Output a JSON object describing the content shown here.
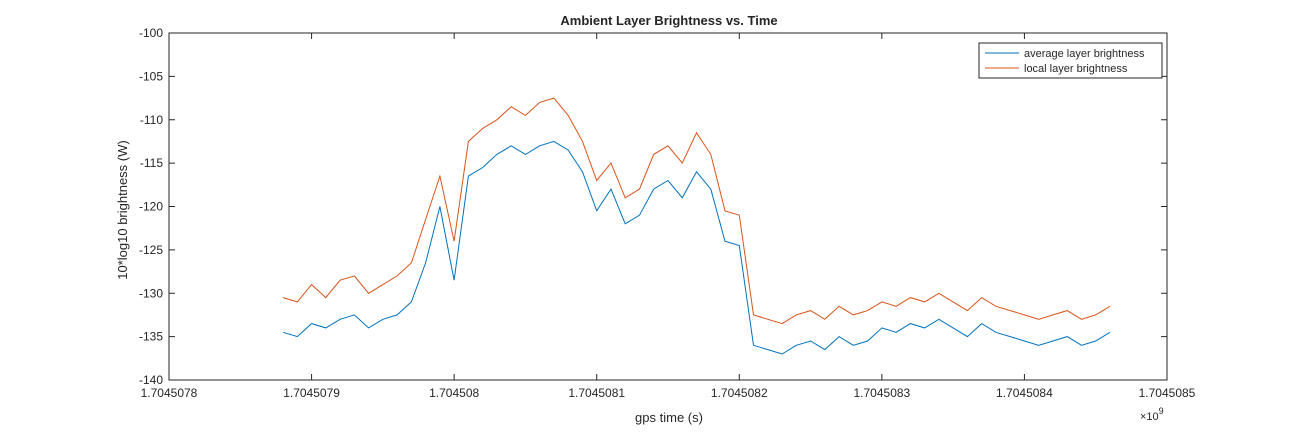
{
  "chart_data": {
    "type": "line",
    "title": "Ambient Layer Brightness vs. Time",
    "xlabel": "gps time (s)",
    "ylabel": "10*log10 brightness (W)",
    "x_exponent_label": "×10",
    "x_exponent_power": "9",
    "xlim": [
      1.7045078,
      1.7045085
    ],
    "ylim": [
      -140,
      -100
    ],
    "x_ticks": [
      1.7045078,
      1.7045079,
      1.704508,
      1.7045081,
      1.7045082,
      1.7045083,
      1.7045084,
      1.7045085
    ],
    "x_tick_labels": [
      "1.7045078",
      "1.7045079",
      "1.704508",
      "1.7045081",
      "1.7045082",
      "1.7045083",
      "1.7045084",
      "1.7045085"
    ],
    "y_ticks": [
      -140,
      -135,
      -130,
      -125,
      -120,
      -115,
      -110,
      -105,
      -100
    ],
    "y_tick_labels": [
      "-140",
      "-135",
      "-130",
      "-125",
      "-120",
      "-115",
      "-110",
      "-105",
      "-100"
    ],
    "grid": false,
    "legend_position": "top-right",
    "series": [
      {
        "name": "average layer brightness",
        "color": "#0072BD",
        "x": [
          1.70450788,
          1.70450789,
          1.7045079,
          1.70450791,
          1.70450792,
          1.70450793,
          1.70450794,
          1.70450795,
          1.70450796,
          1.70450797,
          1.70450798,
          1.70450799,
          1.704508,
          1.70450801,
          1.70450802,
          1.70450803,
          1.70450804,
          1.70450805,
          1.70450806,
          1.70450807,
          1.70450808,
          1.70450809,
          1.7045081,
          1.70450811,
          1.70450812,
          1.70450813,
          1.70450814,
          1.70450815,
          1.70450816,
          1.70450817,
          1.70450818,
          1.70450819,
          1.7045082,
          1.70450821,
          1.70450822,
          1.70450823,
          1.70450824,
          1.70450825,
          1.70450826,
          1.70450827,
          1.70450828,
          1.70450829,
          1.7045083,
          1.70450831,
          1.70450832,
          1.70450833,
          1.70450834,
          1.70450835,
          1.70450836,
          1.70450837,
          1.70450838,
          1.70450839,
          1.7045084,
          1.70450841,
          1.70450842,
          1.70450843,
          1.70450844,
          1.70450845,
          1.70450846
        ],
        "y": [
          -134.5,
          -135.0,
          -133.5,
          -134.0,
          -133.0,
          -132.5,
          -134.0,
          -133.0,
          -132.5,
          -131.0,
          -126.5,
          -120.0,
          -128.5,
          -116.5,
          -115.5,
          -114.0,
          -113.0,
          -114.0,
          -113.0,
          -112.5,
          -113.5,
          -116.0,
          -120.5,
          -118.0,
          -122.0,
          -121.0,
          -118.0,
          -117.0,
          -119.0,
          -116.0,
          -118.0,
          -124.0,
          -124.5,
          -136.0,
          -136.5,
          -137.0,
          -136.0,
          -135.5,
          -136.5,
          -135.0,
          -136.0,
          -135.5,
          -134.0,
          -134.5,
          -133.5,
          -134.0,
          -133.0,
          -134.0,
          -135.0,
          -133.5,
          -134.5,
          -135.0,
          -135.5,
          -136.0,
          -135.5,
          -135.0,
          -136.0,
          -135.5,
          -134.5
        ]
      },
      {
        "name": "local layer brightness",
        "color": "#D95319",
        "x": [
          1.70450788,
          1.70450789,
          1.7045079,
          1.70450791,
          1.70450792,
          1.70450793,
          1.70450794,
          1.70450795,
          1.70450796,
          1.70450797,
          1.70450798,
          1.70450799,
          1.704508,
          1.70450801,
          1.70450802,
          1.70450803,
          1.70450804,
          1.70450805,
          1.70450806,
          1.70450807,
          1.70450808,
          1.70450809,
          1.7045081,
          1.70450811,
          1.70450812,
          1.70450813,
          1.70450814,
          1.70450815,
          1.70450816,
          1.70450817,
          1.70450818,
          1.70450819,
          1.7045082,
          1.70450821,
          1.70450822,
          1.70450823,
          1.70450824,
          1.70450825,
          1.70450826,
          1.70450827,
          1.70450828,
          1.70450829,
          1.7045083,
          1.70450831,
          1.70450832,
          1.70450833,
          1.70450834,
          1.70450835,
          1.70450836,
          1.70450837,
          1.70450838,
          1.70450839,
          1.7045084,
          1.70450841,
          1.70450842,
          1.70450843,
          1.70450844,
          1.70450845,
          1.70450846
        ],
        "y": [
          -130.5,
          -131.0,
          -129.0,
          -130.5,
          -128.5,
          -128.0,
          -130.0,
          -129.0,
          -128.0,
          -126.5,
          -121.5,
          -116.5,
          -124.0,
          -112.5,
          -111.0,
          -110.0,
          -108.5,
          -109.5,
          -108.0,
          -107.5,
          -109.5,
          -112.5,
          -117.0,
          -115.0,
          -119.0,
          -118.0,
          -114.0,
          -113.0,
          -115.0,
          -111.5,
          -114.0,
          -120.5,
          -121.0,
          -132.5,
          -133.0,
          -133.5,
          -132.5,
          -132.0,
          -133.0,
          -131.5,
          -132.5,
          -132.0,
          -131.0,
          -131.5,
          -130.5,
          -131.0,
          -130.0,
          -131.0,
          -132.0,
          -130.5,
          -131.5,
          -132.0,
          -132.5,
          -133.0,
          -132.5,
          -132.0,
          -133.0,
          -132.5,
          -131.5
        ]
      }
    ]
  }
}
